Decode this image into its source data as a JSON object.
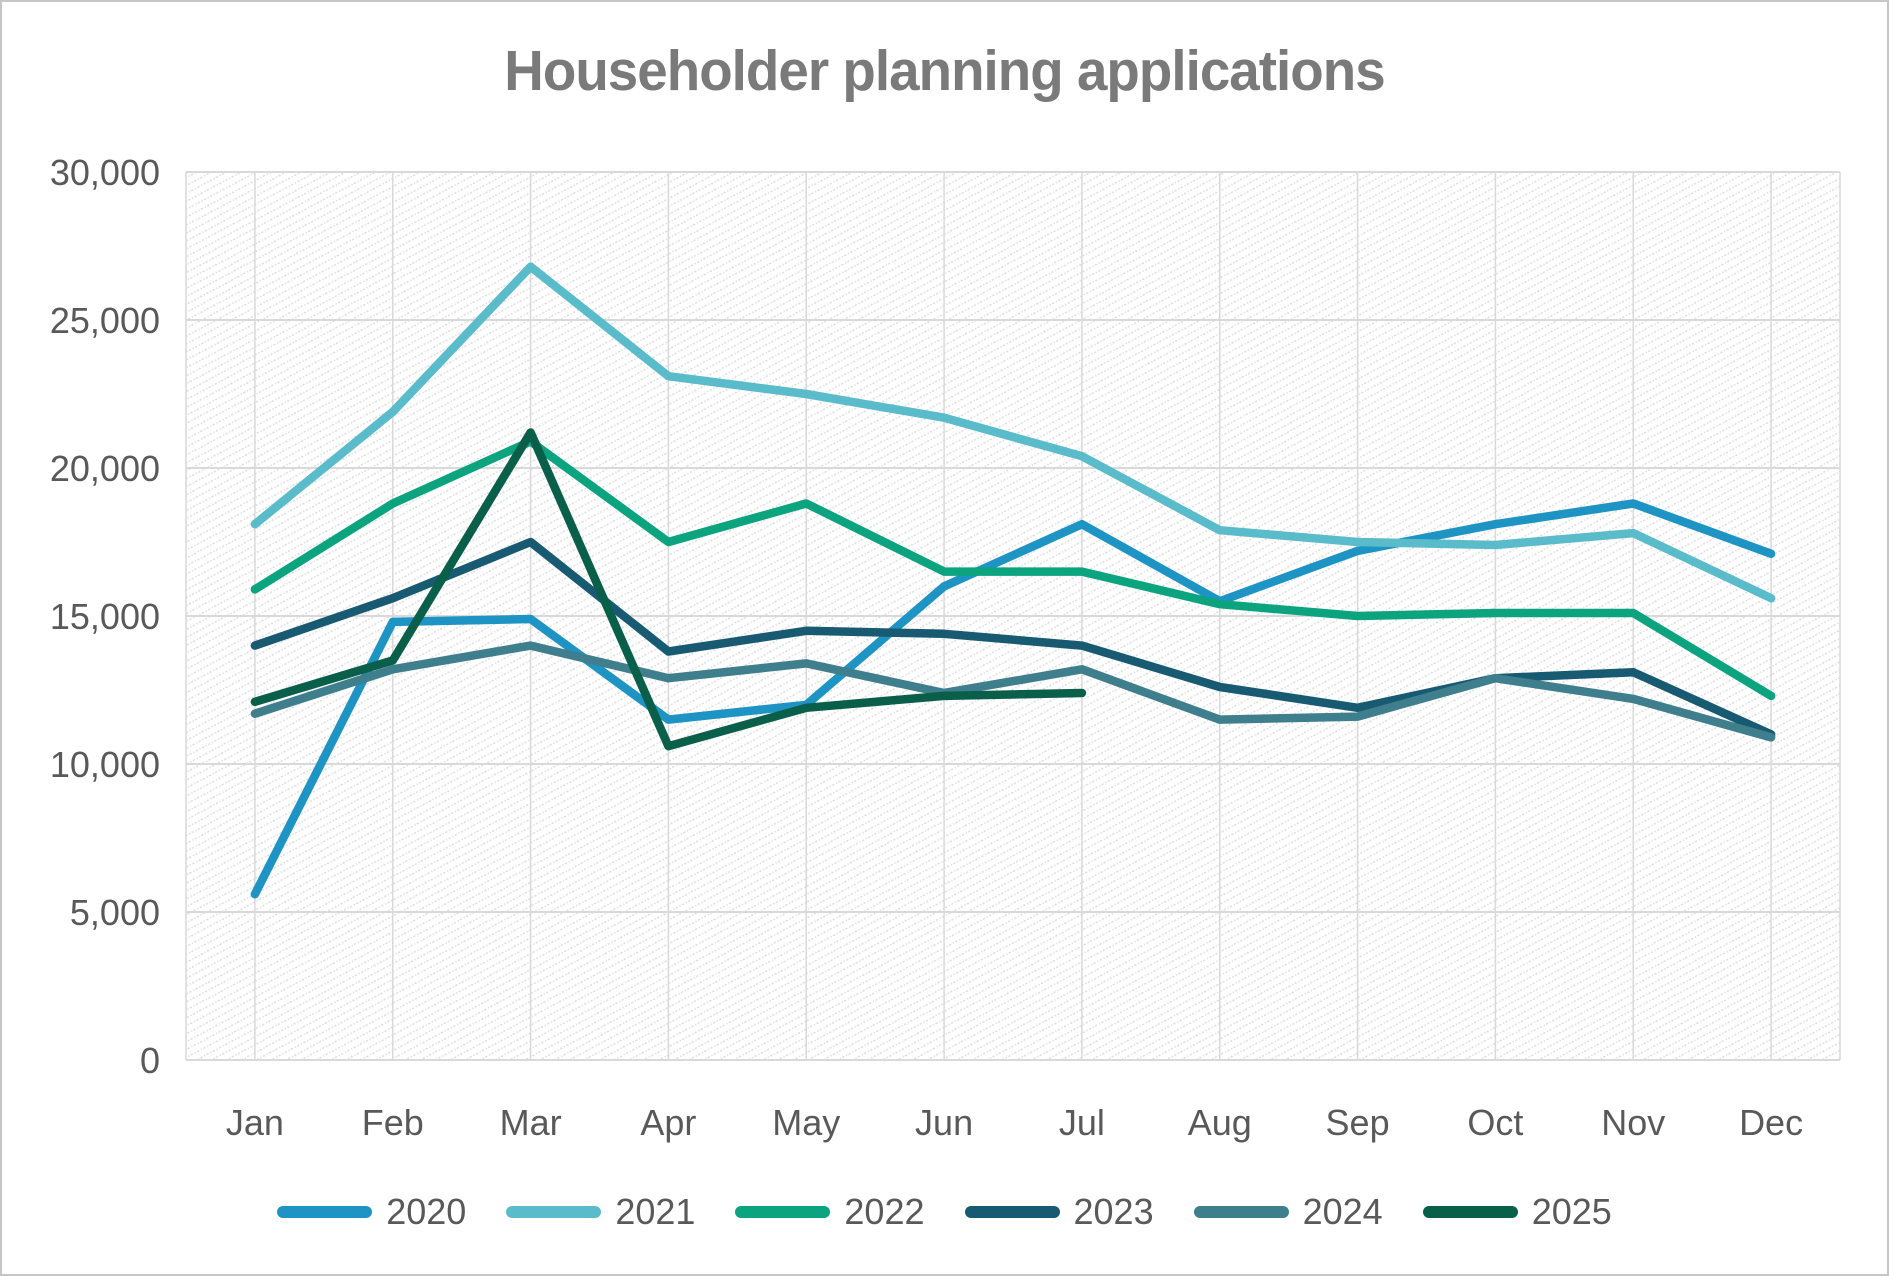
{
  "title": "Householder planning applications",
  "colors": {
    "title_text": "#7a7a7a",
    "axis_text": "#595959",
    "gridline": "#d9d9d9",
    "plot_hatch": "#dcdcdc",
    "frame_border": "#c6c6c6"
  },
  "chart_data": {
    "type": "line",
    "title": "Householder planning applications",
    "xlabel": "",
    "ylabel": "",
    "ylim": [
      0,
      30000
    ],
    "ytick_step": 5000,
    "grid": true,
    "legend_position": "bottom",
    "x": [
      "Jan",
      "Feb",
      "Mar",
      "Apr",
      "May",
      "Jun",
      "Jul",
      "Aug",
      "Sep",
      "Oct",
      "Nov",
      "Dec"
    ],
    "y_tick_labels": [
      "30,000",
      "25,000",
      "20,000",
      "15,000",
      "10,000",
      "5,000",
      "0"
    ],
    "series": [
      {
        "name": "2020",
        "color": "#1e94c4",
        "values": [
          5600,
          14800,
          14900,
          11500,
          12000,
          16000,
          18100,
          15500,
          17200,
          18100,
          18800,
          17100
        ]
      },
      {
        "name": "2021",
        "color": "#5abccb",
        "values": [
          18100,
          21900,
          26800,
          23100,
          22500,
          21700,
          20400,
          17900,
          17500,
          17400,
          17800,
          15600
        ]
      },
      {
        "name": "2022",
        "color": "#0ba47e",
        "values": [
          15900,
          18800,
          20900,
          17500,
          18800,
          16500,
          16500,
          15400,
          15000,
          15100,
          15100,
          12300
        ]
      },
      {
        "name": "2023",
        "color": "#175a72",
        "values": [
          14000,
          15600,
          17500,
          13800,
          14500,
          14400,
          14000,
          12600,
          11900,
          12900,
          13100,
          11000
        ]
      },
      {
        "name": "2024",
        "color": "#3f7e8d",
        "values": [
          11700,
          13200,
          14000,
          12900,
          13400,
          12400,
          13200,
          11500,
          11600,
          12900,
          12200,
          10900
        ]
      },
      {
        "name": "2025",
        "color": "#0a5f4a",
        "values": [
          12100,
          13500,
          21200,
          10600,
          11900,
          12300,
          12400,
          null,
          null,
          null,
          null,
          null
        ]
      }
    ]
  }
}
